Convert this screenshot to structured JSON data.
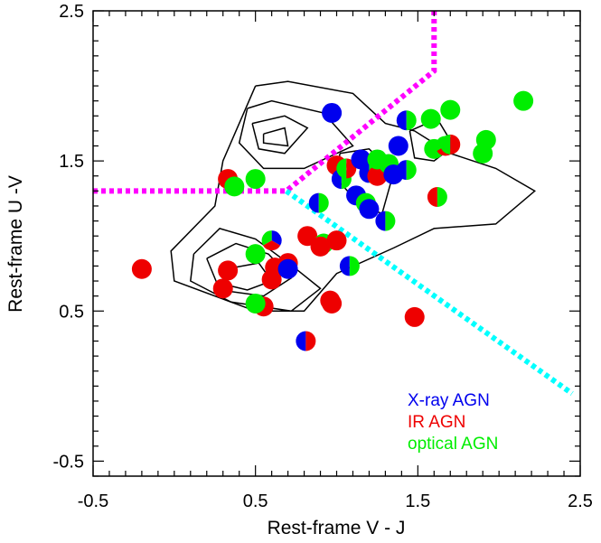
{
  "chart_data": {
    "type": "scatter",
    "xlabel": "Rest-frame V - J",
    "ylabel": "Rest-frame U -V",
    "xlim": [
      -0.5,
      2.5
    ],
    "ylim": [
      -0.6,
      2.5
    ],
    "xticks": [
      "-0.5",
      "0.5",
      "1.5",
      "2.5"
    ],
    "yticks": [
      "-0.5",
      "0.5",
      "1.5",
      "2.5"
    ],
    "xtick_values": [
      -0.5,
      0.5,
      1.5,
      2.5
    ],
    "ytick_values": [
      -0.5,
      0.5,
      1.5,
      2.5
    ],
    "x_minor_step": 0.1,
    "y_minor_step": 0.1,
    "legend_position": "bottom-right",
    "legend": [
      {
        "name": "X-ray AGN",
        "color": "#0000ee"
      },
      {
        "name": "IR AGN",
        "color": "#ee0000"
      },
      {
        "name": "optical AGN",
        "color": "#00ee00"
      }
    ],
    "colors": {
      "xray": "#0000ee",
      "ir": "#ee0000",
      "optical": "#00ee00",
      "magenta": "#ff00ff",
      "cyan": "#00ffff",
      "contour": "#000000"
    },
    "selection_lines": [
      {
        "color": "#ff00ff",
        "style": "dotted",
        "points": [
          [
            -0.5,
            1.3
          ],
          [
            0.69,
            1.3
          ],
          [
            1.6,
            2.1
          ],
          [
            1.6,
            2.5
          ]
        ]
      },
      {
        "color": "#00ffff",
        "style": "dotted",
        "points": [
          [
            0.69,
            1.3
          ],
          [
            2.45,
            -0.05
          ]
        ]
      }
    ],
    "contours": [
      [
        [
          0.5,
          2.0
        ],
        [
          0.7,
          2.03
        ],
        [
          1.1,
          1.95
        ],
        [
          1.3,
          1.75
        ],
        [
          1.48,
          1.7
        ],
        [
          1.7,
          1.55
        ],
        [
          1.98,
          1.45
        ],
        [
          2.22,
          1.3
        ],
        [
          1.98,
          1.08
        ],
        [
          1.6,
          1.05
        ],
        [
          1.35,
          0.92
        ],
        [
          1.0,
          0.75
        ],
        [
          0.8,
          0.5
        ],
        [
          0.5,
          0.5
        ],
        [
          0.0,
          0.7
        ],
        [
          -0.02,
          0.9
        ],
        [
          0.25,
          1.2
        ],
        [
          0.3,
          1.5
        ],
        [
          0.5,
          2.0
        ]
      ],
      [
        [
          0.45,
          1.85
        ],
        [
          0.6,
          1.9
        ],
        [
          0.92,
          1.82
        ],
        [
          1.1,
          1.6
        ],
        [
          0.8,
          1.45
        ],
        [
          0.55,
          1.45
        ],
        [
          0.4,
          1.62
        ],
        [
          0.45,
          1.85
        ]
      ],
      [
        [
          0.48,
          1.75
        ],
        [
          0.68,
          1.8
        ],
        [
          0.82,
          1.72
        ],
        [
          0.68,
          1.55
        ],
        [
          0.52,
          1.58
        ],
        [
          0.48,
          1.75
        ]
      ],
      [
        [
          0.55,
          1.68
        ],
        [
          0.68,
          1.72
        ],
        [
          0.7,
          1.6
        ],
        [
          0.55,
          1.62
        ],
        [
          0.55,
          1.68
        ]
      ],
      [
        [
          0.12,
          0.88
        ],
        [
          0.28,
          1.05
        ],
        [
          0.5,
          0.98
        ],
        [
          0.75,
          0.78
        ],
        [
          0.9,
          0.65
        ],
        [
          0.72,
          0.5
        ],
        [
          0.35,
          0.56
        ],
        [
          0.1,
          0.7
        ],
        [
          0.12,
          0.88
        ]
      ],
      [
        [
          0.2,
          0.85
        ],
        [
          0.38,
          0.95
        ],
        [
          0.58,
          0.88
        ],
        [
          0.72,
          0.72
        ],
        [
          0.55,
          0.6
        ],
        [
          0.28,
          0.64
        ],
        [
          0.2,
          0.85
        ]
      ],
      [
        [
          0.32,
          0.78
        ],
        [
          0.52,
          0.82
        ],
        [
          0.6,
          0.7
        ],
        [
          0.45,
          0.64
        ],
        [
          0.3,
          0.68
        ],
        [
          0.32,
          0.78
        ]
      ],
      [
        [
          1.02,
          1.55
        ],
        [
          1.2,
          1.58
        ],
        [
          1.35,
          1.42
        ],
        [
          1.28,
          1.15
        ],
        [
          1.15,
          1.2
        ],
        [
          1.0,
          1.38
        ],
        [
          1.02,
          1.55
        ]
      ],
      [
        [
          1.45,
          1.7
        ],
        [
          1.62,
          1.78
        ],
        [
          1.72,
          1.6
        ],
        [
          1.6,
          1.5
        ],
        [
          1.48,
          1.52
        ],
        [
          1.45,
          1.7
        ]
      ]
    ],
    "points": [
      {
        "x": -0.2,
        "y": 0.78,
        "c": [
          "ir"
        ]
      },
      {
        "x": 0.33,
        "y": 1.38,
        "c": [
          "ir"
        ]
      },
      {
        "x": 0.37,
        "y": 1.33,
        "c": [
          "optical"
        ]
      },
      {
        "x": 0.5,
        "y": 1.38,
        "c": [
          "optical"
        ]
      },
      {
        "x": 0.3,
        "y": 0.65,
        "c": [
          "ir"
        ]
      },
      {
        "x": 0.33,
        "y": 0.77,
        "c": [
          "ir"
        ]
      },
      {
        "x": 0.5,
        "y": 0.88,
        "c": [
          "optical"
        ]
      },
      {
        "x": 0.55,
        "y": 0.53,
        "c": [
          "ir"
        ]
      },
      {
        "x": 0.5,
        "y": 0.55,
        "c": [
          "optical"
        ]
      },
      {
        "x": 0.6,
        "y": 0.71,
        "c": [
          "ir"
        ]
      },
      {
        "x": 0.62,
        "y": 0.79,
        "c": [
          "ir"
        ]
      },
      {
        "x": 0.6,
        "y": 0.97,
        "c": [
          "xray",
          "ir",
          "optical"
        ]
      },
      {
        "x": 0.7,
        "y": 0.82,
        "c": [
          "ir"
        ]
      },
      {
        "x": 0.7,
        "y": 0.78,
        "c": [
          "xray"
        ]
      },
      {
        "x": 0.81,
        "y": 0.3,
        "c": [
          "xray",
          "ir"
        ]
      },
      {
        "x": 0.82,
        "y": 1.0,
        "c": [
          "ir"
        ]
      },
      {
        "x": 0.89,
        "y": 1.22,
        "c": [
          "xray",
          "optical"
        ]
      },
      {
        "x": 0.92,
        "y": 0.95,
        "c": [
          "optical"
        ]
      },
      {
        "x": 0.9,
        "y": 0.93,
        "c": [
          "ir"
        ]
      },
      {
        "x": 0.96,
        "y": 0.57,
        "c": [
          "ir"
        ]
      },
      {
        "x": 0.97,
        "y": 0.55,
        "c": [
          "ir"
        ]
      },
      {
        "x": 0.97,
        "y": 1.82,
        "c": [
          "xray"
        ]
      },
      {
        "x": 1.0,
        "y": 0.97,
        "c": [
          "ir"
        ]
      },
      {
        "x": 1.0,
        "y": 1.47,
        "c": [
          "ir"
        ]
      },
      {
        "x": 1.03,
        "y": 1.38,
        "c": [
          "xray",
          "optical"
        ]
      },
      {
        "x": 1.06,
        "y": 1.45,
        "c": [
          "optical",
          "ir"
        ]
      },
      {
        "x": 1.08,
        "y": 0.8,
        "c": [
          "xray",
          "optical"
        ]
      },
      {
        "x": 1.12,
        "y": 1.27,
        "c": [
          "xray"
        ]
      },
      {
        "x": 1.15,
        "y": 1.51,
        "c": [
          "xray"
        ]
      },
      {
        "x": 1.18,
        "y": 1.22,
        "c": [
          "optical"
        ]
      },
      {
        "x": 1.2,
        "y": 1.18,
        "c": [
          "xray"
        ]
      },
      {
        "x": 1.2,
        "y": 1.42,
        "c": [
          "xray",
          "optical"
        ]
      },
      {
        "x": 1.25,
        "y": 1.4,
        "c": [
          "ir"
        ]
      },
      {
        "x": 1.25,
        "y": 1.51,
        "c": [
          "optical"
        ]
      },
      {
        "x": 1.3,
        "y": 1.1,
        "c": [
          "xray",
          "optical"
        ]
      },
      {
        "x": 1.32,
        "y": 1.48,
        "c": [
          "optical"
        ]
      },
      {
        "x": 1.35,
        "y": 1.41,
        "c": [
          "xray"
        ]
      },
      {
        "x": 1.38,
        "y": 1.6,
        "c": [
          "xray"
        ]
      },
      {
        "x": 1.43,
        "y": 1.77,
        "c": [
          "xray",
          "optical"
        ]
      },
      {
        "x": 1.43,
        "y": 1.44,
        "c": [
          "xray",
          "optical"
        ]
      },
      {
        "x": 1.48,
        "y": 0.46,
        "c": [
          "ir"
        ]
      },
      {
        "x": 1.58,
        "y": 1.78,
        "c": [
          "optical"
        ]
      },
      {
        "x": 1.6,
        "y": 1.58,
        "c": [
          "optical"
        ]
      },
      {
        "x": 1.62,
        "y": 1.26,
        "c": [
          "ir",
          "optical"
        ]
      },
      {
        "x": 1.67,
        "y": 1.6,
        "c": [
          "xray",
          "ir",
          "optical"
        ]
      },
      {
        "x": 1.7,
        "y": 1.61,
        "c": [
          "optical",
          "ir"
        ]
      },
      {
        "x": 1.7,
        "y": 1.84,
        "c": [
          "optical"
        ]
      },
      {
        "x": 1.9,
        "y": 1.55,
        "c": [
          "optical"
        ]
      },
      {
        "x": 1.92,
        "y": 1.64,
        "c": [
          "optical"
        ]
      },
      {
        "x": 2.15,
        "y": 1.9,
        "c": [
          "optical"
        ]
      }
    ]
  }
}
